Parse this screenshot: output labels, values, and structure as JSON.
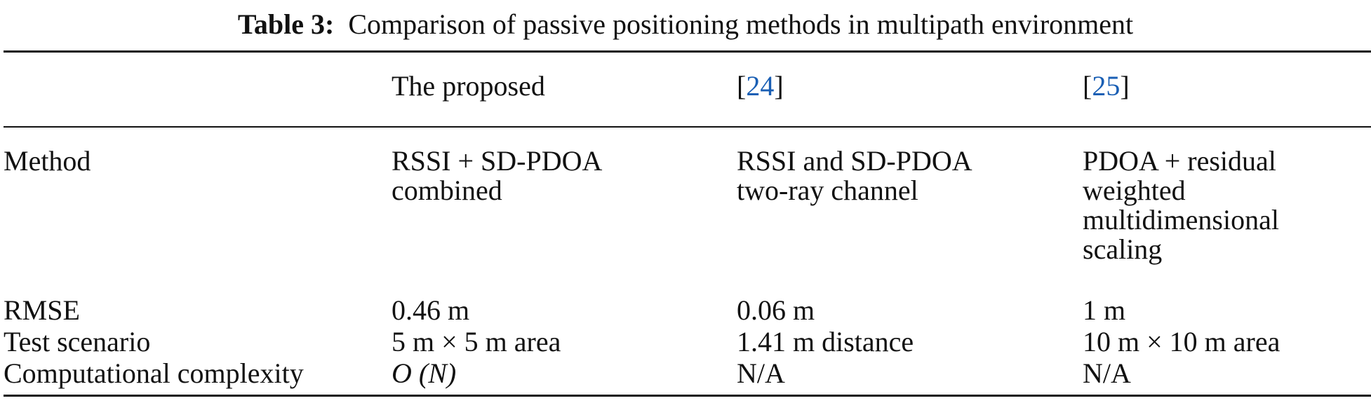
{
  "caption": {
    "label": "Table 3:",
    "text": "Comparison of passive positioning methods in multipath environment"
  },
  "colors": {
    "reference_link": "#1a5fb4"
  },
  "header": {
    "col1": "",
    "col2": "The proposed",
    "col3_open": "[",
    "col3_ref": "24",
    "col3_close": "]",
    "col4_open": "[",
    "col4_ref": "25",
    "col4_close": "]"
  },
  "rows": [
    {
      "label": "Method",
      "values": [
        [
          "RSSI + SD-PDOA",
          "combined"
        ],
        [
          "RSSI and SD-PDOA",
          "two-ray channel"
        ],
        [
          "PDOA + residual",
          "weighted",
          "multidimensional",
          "scaling"
        ]
      ]
    },
    {
      "label": "RMSE",
      "values": [
        "0.46 m",
        "0.06 m",
        "1 m"
      ]
    },
    {
      "label": "Test scenario",
      "values": [
        "5 m × 5 m area",
        "1.41 m distance",
        "10 m × 10 m area"
      ]
    },
    {
      "label": "Computational complexity",
      "values": [
        "O (N)",
        "N/A",
        "N/A"
      ]
    }
  ]
}
